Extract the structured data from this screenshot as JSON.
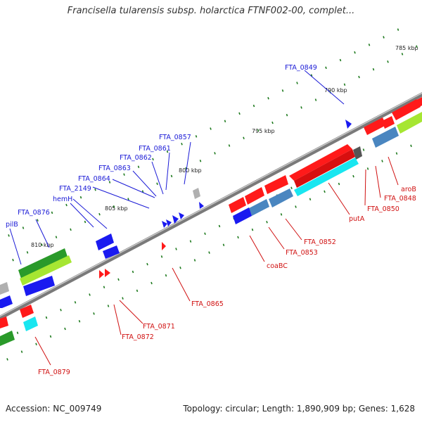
{
  "title": "Francisella tularensis subsp. holarctica FTNF002-00, complet...",
  "footer": {
    "accession": "Accession: NC_009749",
    "summary": "Topology: circular; Length: 1,890,909 bp; Genes: 1,628"
  },
  "colors": {
    "backbone": "#888888",
    "blue_label": "#1a1ad6",
    "red_label": "#d01010",
    "tick": "#1e7a1e",
    "gene_red": "#ff1a1a",
    "gene_blue": "#1a1af0",
    "gene_cyan": "#19e6f0",
    "gene_steel": "#4a86c0",
    "gene_green": "#2a9a2a",
    "gene_lime": "#a6e632",
    "gene_gray": "#b0b0b0"
  },
  "scale_labels": [
    "785 kbp",
    "790 kbp",
    "795 kbp",
    "800 kbp",
    "805 kbp",
    "810 kbp"
  ],
  "top_labels": [
    "FTA_0849",
    "FTA_0857",
    "FTA_0861",
    "FTA_0862",
    "FTA_0863",
    "FTA_0864",
    "FTA_2149",
    "hemH",
    "FTA_0876",
    "pilB"
  ],
  "bottom_labels": [
    "aroB",
    "FTA_0848",
    "FTA_0850",
    "putA",
    "FTA_0852",
    "FTA_0853",
    "coaBC",
    "FTA_0865",
    "FTA_0871",
    "FTA_0872",
    "FTA_0879"
  ]
}
